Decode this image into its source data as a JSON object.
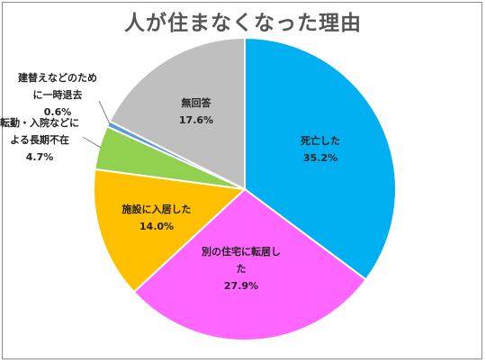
{
  "chart_data": {
    "type": "pie",
    "title": "人が住まなくなった理由",
    "slices": [
      {
        "label_lines": [
          "死亡した"
        ],
        "value": 35.2,
        "value_text": "35.2%",
        "color": "#00b0f0"
      },
      {
        "label_lines": [
          "別の住宅に転居し",
          "た"
        ],
        "value": 27.9,
        "value_text": "27.9%",
        "color": "#ff66ff"
      },
      {
        "label_lines": [
          "施設に入居した"
        ],
        "value": 14.0,
        "value_text": "14.0%",
        "color": "#ffc000"
      },
      {
        "label_lines": [
          "転勤・入院などに",
          "よる長期不在"
        ],
        "value": 4.7,
        "value_text": "4.7%",
        "color": "#92d050"
      },
      {
        "label_lines": [
          "建替えなどのため",
          "に一時退去"
        ],
        "value": 0.6,
        "value_text": "0.6%",
        "color": "#5b9bd5"
      },
      {
        "label_lines": [
          "無回答"
        ],
        "value": 17.6,
        "value_text": "17.6%",
        "color": "#bfbfbf"
      }
    ],
    "start_angle": "12 o'clock",
    "direction": "clockwise",
    "legend": "none"
  }
}
